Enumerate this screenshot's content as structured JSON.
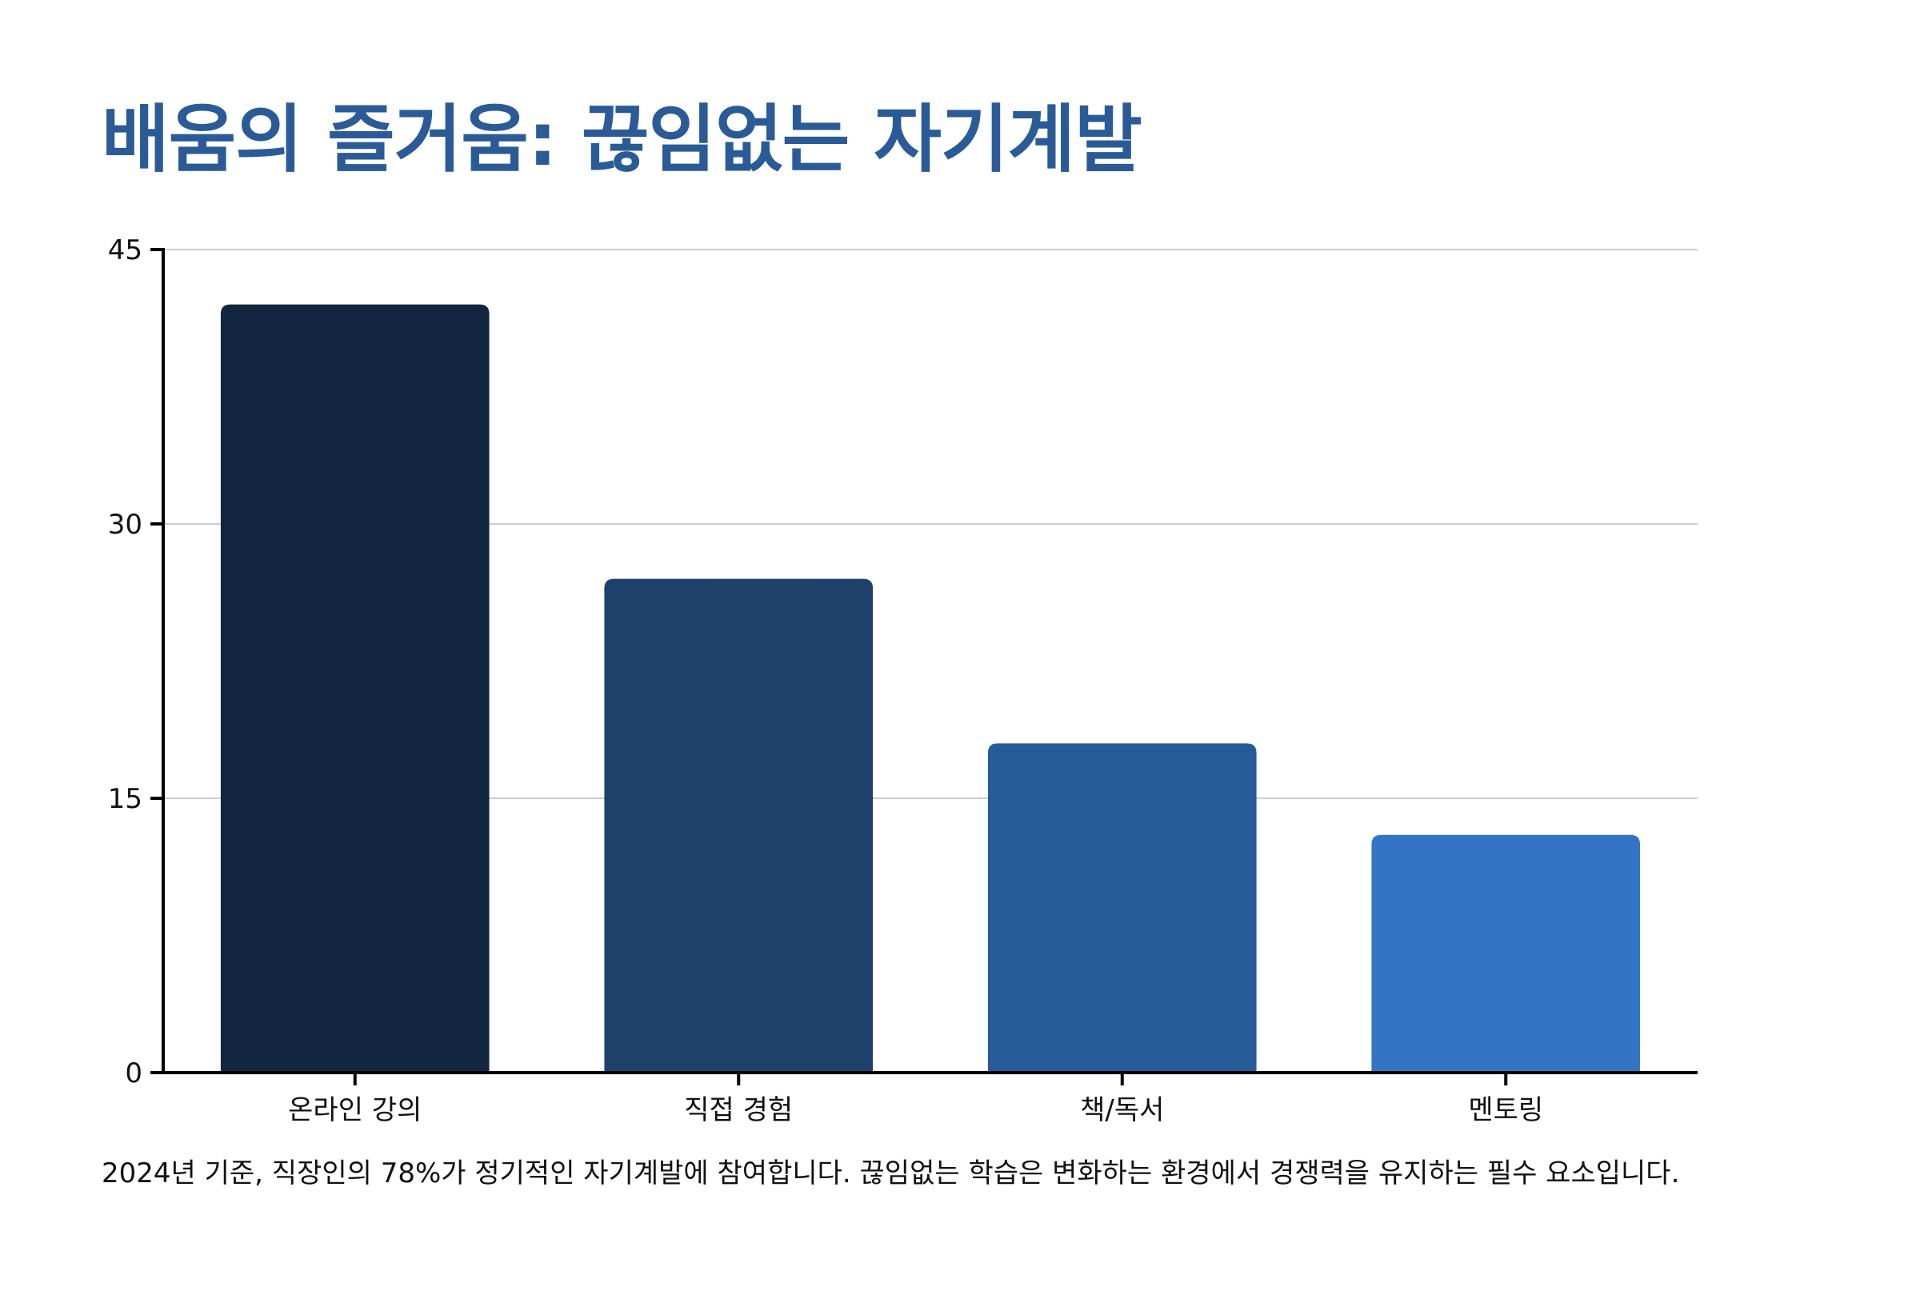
{
  "title": "배움의 즐거움: 끊임없는 자기계발",
  "caption": "2024년 기준, 직장인의 78%가 정기적인 자기계발에 참여합니다. 끊임없는 학습은 변화하는 환경에서 경쟁력을 유지하는 필수 요소입니다.",
  "chart_data": {
    "type": "bar",
    "title": "배움의 즐거움: 끊임없는 자기계발",
    "xlabel": "",
    "ylabel": "",
    "categories": [
      "온라인 강의",
      "직접 경험",
      "책/독서",
      "멘토링"
    ],
    "values": [
      42,
      27,
      18,
      13
    ],
    "colors": [
      "#12263f",
      "#1d416b",
      "#275b97",
      "#3375c5"
    ],
    "ylim": [
      0,
      45
    ],
    "yticks": [
      0,
      15,
      30,
      45
    ],
    "grid": true,
    "legend": "none"
  }
}
